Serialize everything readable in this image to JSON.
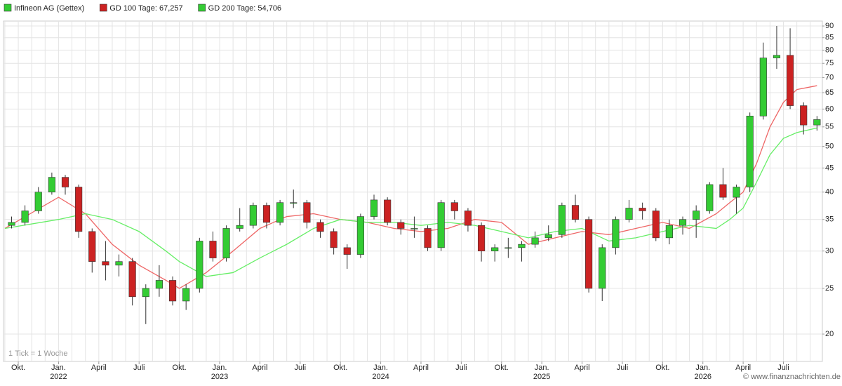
{
  "chart_data": {
    "type": "candlestick",
    "log_scale": true,
    "grid": true,
    "x_minor_step": 1,
    "xlim": [
      -4.1,
      56.9
    ],
    "ylim": [
      17.5,
      92.2
    ],
    "yticks": [
      20,
      25,
      30,
      35,
      40,
      45,
      50,
      55,
      60,
      65,
      70,
      75,
      80,
      85,
      90
    ],
    "xticks": [
      {
        "value": -3,
        "label": "Okt."
      },
      {
        "value": 0,
        "label": "Jan."
      },
      {
        "value": 3,
        "label": "April"
      },
      {
        "value": 6,
        "label": "Juli"
      },
      {
        "value": 9,
        "label": "Okt."
      },
      {
        "value": 12,
        "label": "Jan."
      },
      {
        "value": 15,
        "label": "April"
      },
      {
        "value": 18,
        "label": "Juli"
      },
      {
        "value": 21,
        "label": "Okt."
      },
      {
        "value": 24,
        "label": "Jan."
      },
      {
        "value": 27,
        "label": "April"
      },
      {
        "value": 30,
        "label": "Juli"
      },
      {
        "value": 33,
        "label": "Okt."
      },
      {
        "value": 36,
        "label": "Jan."
      },
      {
        "value": 39,
        "label": "April"
      },
      {
        "value": 42,
        "label": "Juli"
      },
      {
        "value": 45,
        "label": "Okt."
      },
      {
        "value": 48,
        "label": "Jan."
      },
      {
        "value": 51,
        "label": "April"
      },
      {
        "value": 54,
        "label": "Juli"
      }
    ],
    "year_ticks": [
      {
        "value": 0,
        "label": "2022"
      },
      {
        "value": 12,
        "label": "2023"
      },
      {
        "value": 24,
        "label": "2024"
      },
      {
        "value": 36,
        "label": "2025"
      },
      {
        "value": 48,
        "label": "2026"
      }
    ],
    "annotation": "1 Tick = 1 Woche",
    "watermark": "© www.finanznachrichten.de",
    "series": [
      {
        "name": "Infineon AG (Gettex)",
        "kind": "candle",
        "color": "#33cc33",
        "down_color": "#cc2222",
        "x": [
          -3.5,
          -2.5,
          -1.5,
          -0.5,
          0.5,
          1.5,
          2.5,
          3.5,
          4.5,
          5.5,
          6.5,
          7.5,
          8.5,
          9.5,
          10.5,
          11.5,
          12.5,
          13.5,
          14.5,
          15.5,
          16.5,
          17.5,
          18.5,
          19.5,
          20.5,
          21.5,
          22.5,
          23.5,
          24.5,
          25.5,
          26.5,
          27.5,
          28.5,
          29.5,
          30.5,
          31.5,
          32.5,
          33.5,
          34.5,
          35.5,
          36.5,
          37.5,
          38.5,
          39.5,
          40.5,
          41.5,
          42.5,
          43.5,
          44.5,
          45.5,
          46.5,
          47.5,
          48.5,
          49.5,
          50.5,
          51.5,
          52.5,
          53.5,
          54.5,
          55.5,
          56.5
        ],
        "open": [
          34,
          34.5,
          36.5,
          40,
          43,
          41,
          33,
          28.5,
          28,
          28.5,
          24,
          25,
          26,
          23.5,
          25,
          31.5,
          29,
          33.5,
          34,
          37.5,
          34.5,
          38,
          38,
          34.5,
          33,
          30.5,
          29.5,
          35.5,
          38.5,
          34.5,
          33.5,
          33.5,
          30.5,
          38,
          36.5,
          34,
          30,
          30.5,
          30.5,
          31,
          32,
          32.5,
          37.5,
          35,
          25,
          30.5,
          35,
          37,
          36.5,
          32,
          34,
          35,
          36.5,
          41.5,
          39,
          41,
          58,
          77,
          78,
          61,
          55.5
        ],
        "high": [
          35.5,
          37.5,
          41,
          44,
          43.5,
          41.5,
          33.5,
          31.5,
          29.5,
          29,
          25.5,
          28,
          26.5,
          25.5,
          32,
          33,
          34,
          37,
          38,
          38,
          38.5,
          40.5,
          38.5,
          35,
          33.5,
          31,
          36,
          39.5,
          39,
          35,
          35.5,
          34,
          38.5,
          38.5,
          37,
          34.5,
          31,
          32,
          31.5,
          33,
          34,
          38,
          39.5,
          35.5,
          31,
          35.5,
          38.5,
          38,
          37,
          35,
          35.5,
          37.5,
          42,
          45,
          41.5,
          59,
          83,
          90,
          89,
          62,
          58
        ],
        "low": [
          33.5,
          34,
          36,
          39.5,
          39.5,
          32,
          27,
          26,
          26.5,
          23,
          21,
          24,
          23,
          22.5,
          24.5,
          28.5,
          28.5,
          33,
          33.5,
          33.5,
          34,
          37,
          33.5,
          32,
          29.5,
          27.5,
          29,
          35,
          34,
          32.5,
          32,
          30,
          30,
          35,
          33,
          28.5,
          28.5,
          29,
          28.5,
          30.5,
          31.5,
          32,
          34.5,
          24.5,
          23.5,
          29.5,
          34.5,
          35,
          31.5,
          31,
          32.5,
          32,
          36,
          38.5,
          36,
          40,
          57,
          73,
          60,
          53,
          54
        ],
        "close": [
          34.5,
          36.5,
          40,
          43,
          41,
          33,
          28.5,
          28,
          28.5,
          24,
          25,
          26,
          23.5,
          25,
          31.5,
          29,
          33.5,
          34,
          37.5,
          34.5,
          38,
          38,
          34.5,
          33,
          30.5,
          29.5,
          35.5,
          38.5,
          34.5,
          33.5,
          33.5,
          30.5,
          38,
          36.5,
          34,
          30,
          30.5,
          30.5,
          31,
          32,
          32.5,
          37.5,
          35,
          25,
          30.5,
          35,
          37,
          36.5,
          32,
          34,
          35,
          36.5,
          41.5,
          39,
          41,
          58,
          77,
          78,
          61,
          55.5,
          57
        ]
      },
      {
        "name": "GD 100 Tage: 67,257",
        "kind": "line",
        "color": "#ee6666",
        "x": [
          -4,
          0,
          2,
          4,
          6,
          8,
          9,
          11,
          13,
          15,
          17,
          19,
          21,
          23,
          25,
          27,
          29,
          31,
          33,
          35,
          37,
          39,
          41,
          43,
          45,
          47,
          49,
          50,
          51,
          52,
          53,
          54,
          55,
          56.5
        ],
        "values": [
          33.5,
          39,
          36,
          31,
          28,
          26,
          25,
          27,
          30,
          33.5,
          35.5,
          36,
          35,
          34.5,
          33.5,
          33,
          33.5,
          35,
          34.5,
          31,
          32,
          33,
          32.5,
          33.5,
          34.5,
          33.5,
          36,
          38,
          40,
          46,
          55,
          62,
          66,
          67.257
        ]
      },
      {
        "name": "GD 200 Tage: 54,706",
        "kind": "line",
        "color": "#66ee66",
        "x": [
          -4,
          0,
          2,
          4,
          6,
          8,
          9,
          11,
          13,
          15,
          17,
          19,
          21,
          23,
          25,
          27,
          29,
          31,
          33,
          35,
          37,
          39,
          41,
          43,
          45,
          47,
          49,
          50,
          51,
          52,
          53,
          54,
          55,
          56.5
        ],
        "values": [
          33.5,
          35,
          36,
          35,
          33,
          30,
          28.5,
          26.5,
          27,
          29,
          31,
          33.5,
          35,
          34.5,
          34.5,
          34,
          34.5,
          34,
          33,
          32,
          33,
          33.5,
          31.5,
          32,
          33,
          34,
          33.5,
          35,
          37,
          42,
          48,
          52,
          53.5,
          54.706
        ]
      }
    ]
  }
}
